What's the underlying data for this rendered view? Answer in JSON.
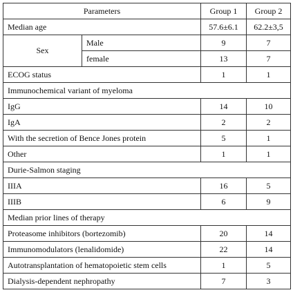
{
  "header": {
    "parameters": "Parameters",
    "group1": "Group 1",
    "group2": "Group 2"
  },
  "median_age": {
    "label": "Median age",
    "g1": "57.6±6.1",
    "g2": "62.2±3,5"
  },
  "sex": {
    "label": "Sex",
    "male": {
      "label": "Male",
      "g1": "9",
      "g2": "7"
    },
    "female": {
      "label": "female",
      "g1": "13",
      "g2": "7"
    }
  },
  "ecog": {
    "label": "ECOG status",
    "g1": "1",
    "g2": "1"
  },
  "immuno_section": "Immunochemical variant of myeloma",
  "immuno": [
    {
      "label": "IgG",
      "g1": "14",
      "g2": "10"
    },
    {
      "label": "IgA",
      "g1": "2",
      "g2": "2"
    },
    {
      "label": "With the secretion of Bence Jones protein",
      "g1": "5",
      "g2": "1"
    },
    {
      "label": "Other",
      "g1": "1",
      "g2": "1"
    }
  ],
  "ds_section": "Durie-Salmon staging",
  "ds": [
    {
      "label": "IIIA",
      "g1": "16",
      "g2": "5"
    },
    {
      "label": "IIIB",
      "g1": "6",
      "g2": "9"
    }
  ],
  "therapy_section": "Median prior lines of therapy",
  "therapy": [
    {
      "label": "Proteasome inhibitors (bortezomib)",
      "g1": "20",
      "g2": "14"
    },
    {
      "label": "Immunomodulators (lenalidomide)",
      "g1": "22",
      "g2": "14"
    },
    {
      "label": "Autotransplantation of hematopoietic stem cells",
      "g1": "1",
      "g2": "5"
    },
    {
      "label": "Dialysis-dependent nephropathy",
      "g1": "7",
      "g2": "3"
    }
  ]
}
